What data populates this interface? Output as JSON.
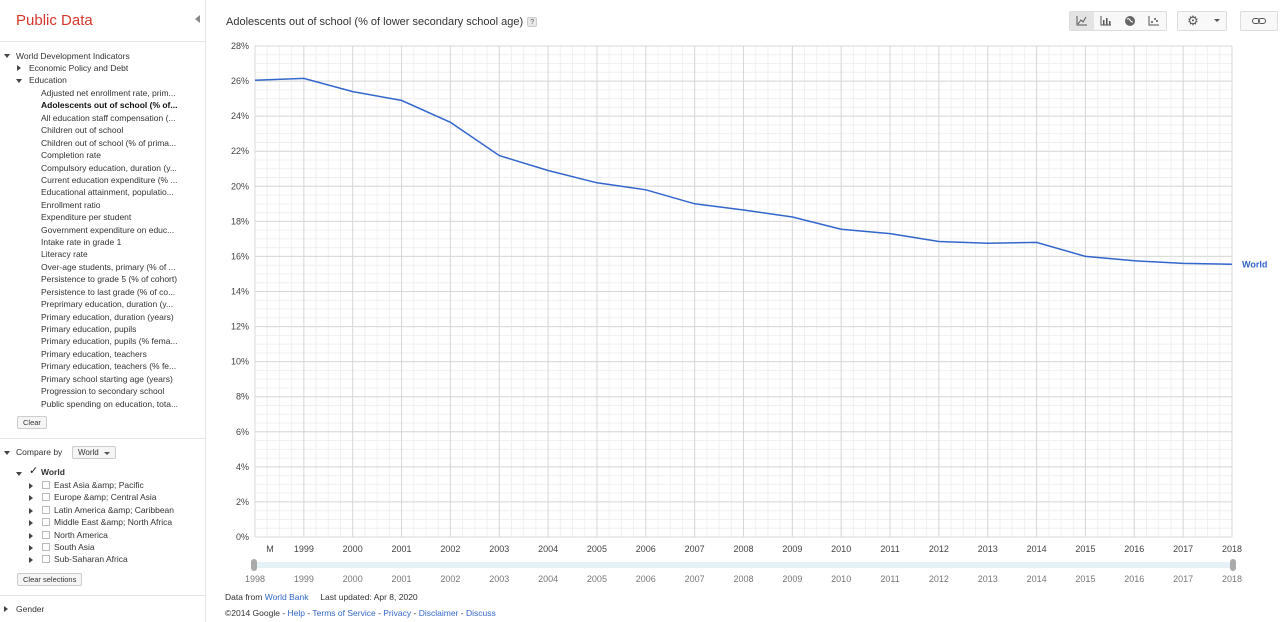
{
  "app": {
    "title": "Public Data"
  },
  "sidebar": {
    "dataset": "World Development Indicators",
    "categories": [
      {
        "label": "Economic Policy and Debt"
      },
      {
        "label": "Education"
      }
    ],
    "indicators": [
      "Adjusted net enrollment rate, prim...",
      "Adolescents out of school (% of...",
      "All education staff compensation (...",
      "Children out of school",
      "Children out of school (% of prima...",
      "Completion rate",
      "Compulsory education, duration (y...",
      "Current education expenditure (% ...",
      "Educational attainment, populatio...",
      "Enrollment ratio",
      "Expenditure per student",
      "Government expenditure on educ...",
      "Intake rate in grade 1",
      "Literacy rate",
      "Over-age students, primary (% of ...",
      "Persistence to grade 5 (% of cohort)",
      "Persistence to last grade (% of co...",
      "Preprimary education, duration (y...",
      "Primary education, duration (years)",
      "Primary education, pupils",
      "Primary education, pupils (% fema...",
      "Primary education, teachers",
      "Primary education, teachers (% fe...",
      "Primary school starting age (years)",
      "Progression to secondary school",
      "Public spending on education, tota..."
    ],
    "selected_indicator_index": 1,
    "clear_label": "Clear",
    "compare_by_label": "Compare by",
    "compare_by_value": "World",
    "regions_root": "World",
    "regions": [
      "East Asia &amp; Pacific",
      "Europe &amp; Central Asia",
      "Latin America &amp; Caribbean",
      "Middle East &amp; North Africa",
      "North America",
      "South Asia",
      "Sub-Saharan Africa"
    ],
    "clear_selections_label": "Clear selections",
    "gender_label": "Gender"
  },
  "chart": {
    "title": "Adolescents out of school (% of lower secondary school age)",
    "help": "?"
  },
  "footer": {
    "data_from": "Data from",
    "source": "World Bank",
    "last_updated": "Last updated: Apr 8, 2020",
    "copyright": "©2014 Google",
    "links": [
      "Help",
      "Terms of Service",
      "Privacy",
      "Disclaimer",
      "Discuss"
    ]
  },
  "chart_data": {
    "type": "line",
    "title": "Adolescents out of school (% of lower secondary school age)",
    "x": [
      1998,
      1999,
      2000,
      2001,
      2002,
      2003,
      2004,
      2005,
      2006,
      2007,
      2008,
      2009,
      2010,
      2011,
      2012,
      2013,
      2014,
      2015,
      2016,
      2017,
      2018
    ],
    "x_tick_labels": [
      "M",
      "1999",
      "2000",
      "2001",
      "2002",
      "2003",
      "2004",
      "2005",
      "2006",
      "2007",
      "2008",
      "2009",
      "2010",
      "2011",
      "2012",
      "2013",
      "2014",
      "2015",
      "2016",
      "2017",
      "2018"
    ],
    "series": [
      {
        "name": "World",
        "color": "#3366cc",
        "values": [
          26.05,
          26.15,
          25.4,
          24.9,
          23.65,
          21.75,
          20.9,
          20.2,
          19.8,
          19.0,
          18.65,
          18.25,
          17.55,
          17.3,
          16.85,
          16.75,
          16.8,
          16.0,
          15.75,
          15.6,
          15.55
        ]
      }
    ],
    "ylim": [
      0,
      28
    ],
    "y_ticks": [
      0,
      2,
      4,
      6,
      8,
      10,
      12,
      14,
      16,
      18,
      20,
      22,
      24,
      26,
      28
    ],
    "y_tick_suffix": "%",
    "grid": true,
    "legend": "end-of-line",
    "timeline_labels": [
      "1998",
      "1999",
      "2000",
      "2001",
      "2002",
      "2003",
      "2004",
      "2005",
      "2006",
      "2007",
      "2008",
      "2009",
      "2010",
      "2011",
      "2012",
      "2013",
      "2014",
      "2015",
      "2016",
      "2017",
      "2018"
    ]
  }
}
